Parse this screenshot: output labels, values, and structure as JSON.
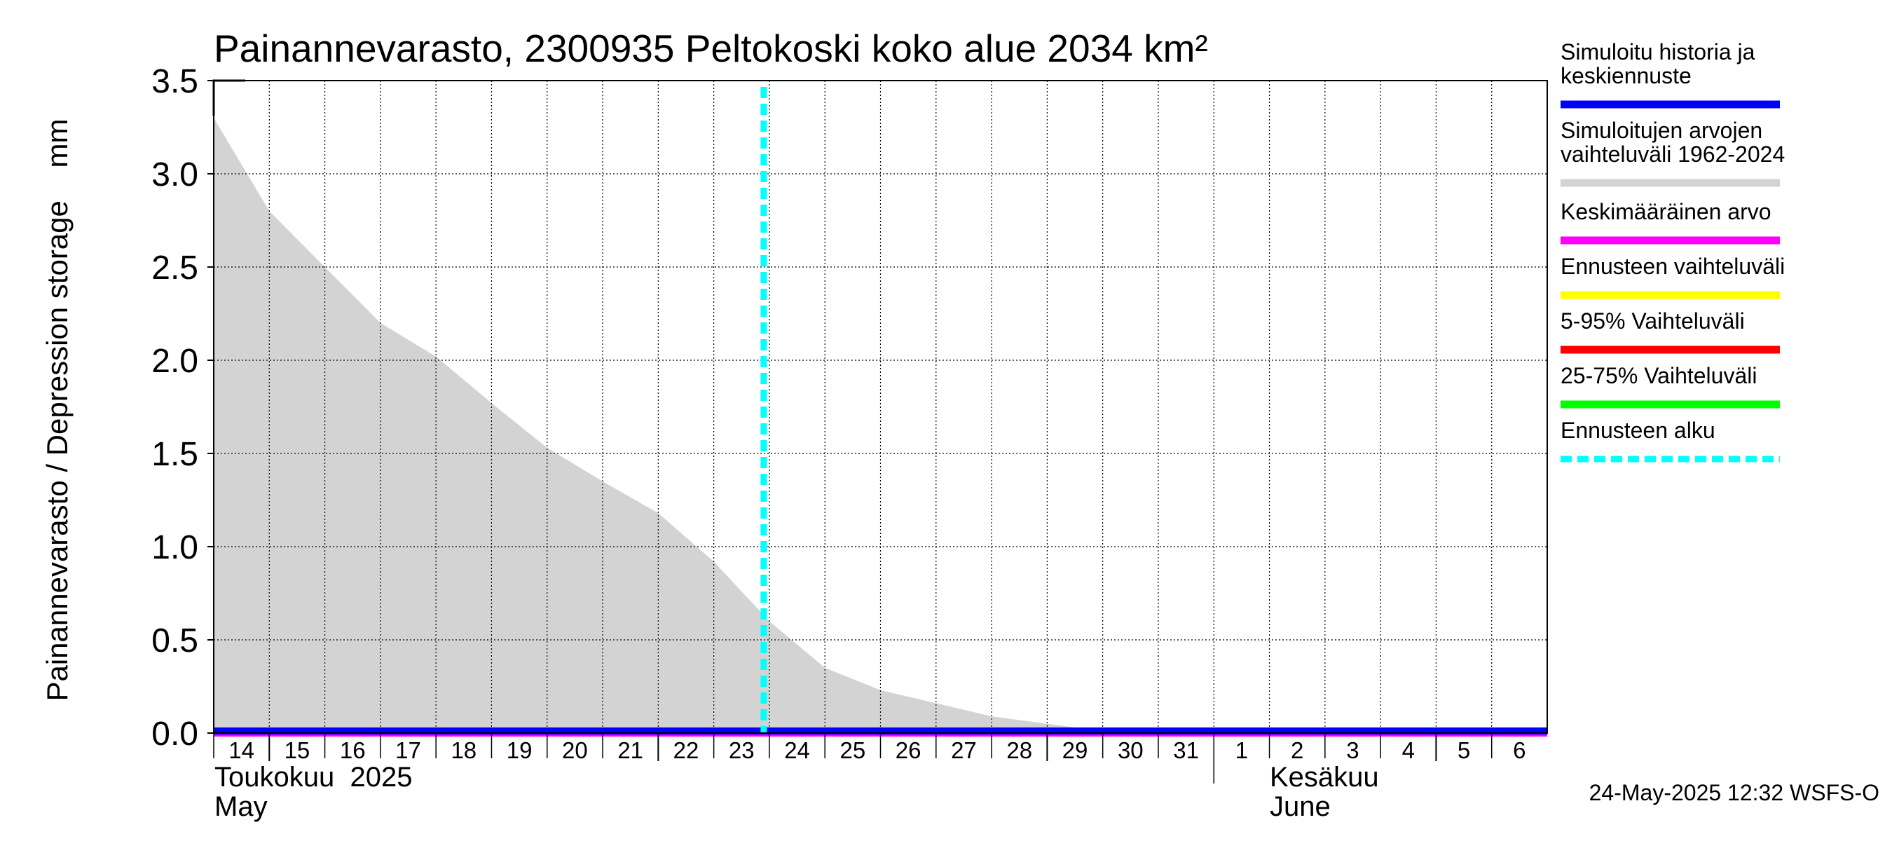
{
  "chart_data": {
    "type": "area",
    "title": "Painannevarasto, 2300935 Peltokoski koko alue 2034 km²",
    "ylabel": "Painannevarasto / Depression storage    mm",
    "ylim": [
      0,
      3.5
    ],
    "yticks": [
      "0.0",
      "0.5",
      "1.0",
      "1.5",
      "2.0",
      "2.5",
      "3.0",
      "3.5"
    ],
    "xlim": [
      "2025-05-14",
      "2025-06-07"
    ],
    "x_tick_labels": [
      "14",
      "15",
      "16",
      "17",
      "18",
      "19",
      "20",
      "21",
      "22",
      "23",
      "24",
      "25",
      "26",
      "27",
      "28",
      "29",
      "30",
      "31",
      "1",
      "2",
      "3",
      "4",
      "5",
      "6"
    ],
    "month_labels": {
      "may_fi": "Toukokuu  2025",
      "may_en": "May",
      "june_fi": "Kesäkuu",
      "june_en": "June"
    },
    "forecast_start": "2025-05-24",
    "series": [
      {
        "name": "Simuloitujen arvojen vaihteluväli 1962-2024",
        "kind": "band",
        "color": "#d3d3d3",
        "x": [
          "2025-05-14",
          "2025-05-15",
          "2025-05-16",
          "2025-05-17",
          "2025-05-18",
          "2025-05-19",
          "2025-05-20",
          "2025-05-21",
          "2025-05-22",
          "2025-05-23",
          "2025-05-24",
          "2025-05-25",
          "2025-05-26",
          "2025-05-27",
          "2025-05-28",
          "2025-05-29",
          "2025-05-30",
          "2025-05-31",
          "2025-06-01",
          "2025-06-07"
        ],
        "upper": [
          3.3,
          2.8,
          2.5,
          2.2,
          2.02,
          1.77,
          1.53,
          1.35,
          1.18,
          0.92,
          0.6,
          0.35,
          0.23,
          0.16,
          0.09,
          0.05,
          0.01,
          0.0,
          0.0,
          0.0
        ],
        "lower": [
          0,
          0,
          0,
          0,
          0,
          0,
          0,
          0,
          0,
          0,
          0,
          0,
          0,
          0,
          0,
          0,
          0,
          0,
          0,
          0
        ]
      },
      {
        "name": "Simuloitu historia ja keskiennuste",
        "kind": "line",
        "color": "#0000ff",
        "x": [
          "2025-05-14",
          "2025-06-07"
        ],
        "values": [
          0.0,
          0.0
        ]
      },
      {
        "name": "Keskimääräinen arvo",
        "kind": "line",
        "color": "#ff00ff",
        "x": [
          "2025-05-14",
          "2025-06-07"
        ],
        "values": [
          0.0,
          0.0
        ]
      }
    ],
    "legend": [
      {
        "label": "Simuloitu historia ja\nkeskiennuste",
        "color": "#0000ff",
        "style": "solid"
      },
      {
        "label": "Simuloitujen arvojen\nvaihteluväli 1962-2024",
        "color": "#d3d3d3",
        "style": "solid"
      },
      {
        "label": "Keskimääräinen arvo",
        "color": "#ff00ff",
        "style": "solid"
      },
      {
        "label": "Ennusteen vaihteluväli",
        "color": "#ffff00",
        "style": "solid"
      },
      {
        "label": "5-95% Vaihteluväli",
        "color": "#ff0000",
        "style": "solid"
      },
      {
        "label": "25-75% Vaihteluväli",
        "color": "#00ff00",
        "style": "solid"
      },
      {
        "label": "Ennusteen alku",
        "color": "#00ffff",
        "style": "dashed"
      }
    ],
    "legend_placement": "right",
    "grid": true,
    "timestamp": "24-May-2025 12:32 WSFS-O"
  }
}
